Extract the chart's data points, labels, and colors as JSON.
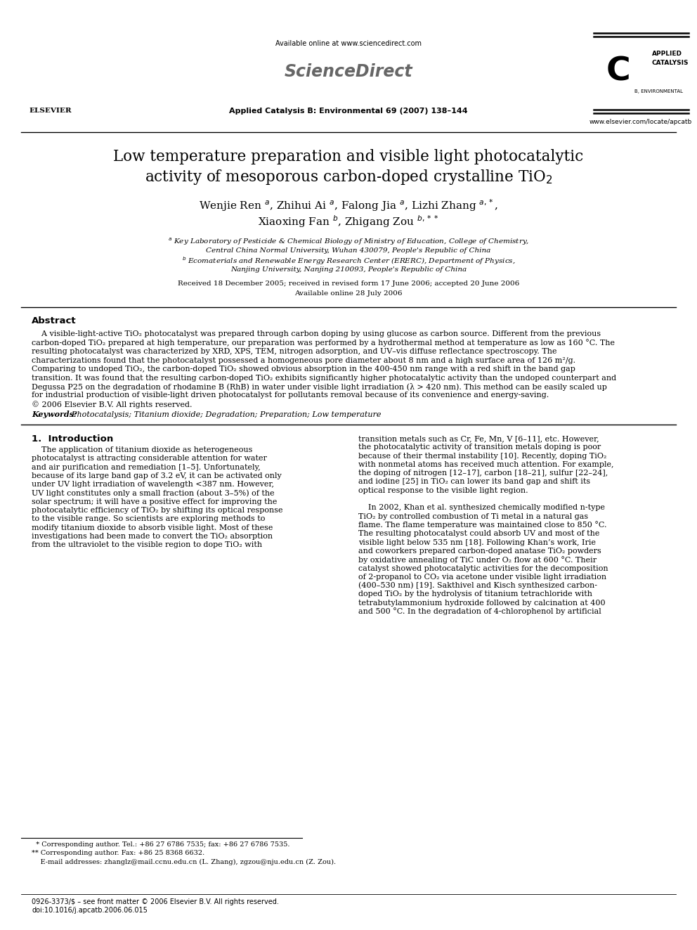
{
  "page_width": 9.92,
  "page_height": 13.23,
  "background_color": "#ffffff",
  "header_available": "Available online at www.sciencedirect.com",
  "header_journal": "Applied Catalysis B: Environmental 69 (2007) 138–144",
  "header_sciencedirect": "ScienceDirect",
  "header_website": "www.elsevier.com/locate/apcatb",
  "title_line1": "Low temperature preparation and visible light photocatalytic",
  "title_line2": "activity of mesoporous carbon-doped crystalline TiO$_2$",
  "authors_line1": "Wenjie Ren $^{a}$, Zhihui Ai $^{a}$, Falong Jia $^{a}$, Lizhi Zhang $^{a,*}$,",
  "authors_line2": "Xiaoxing Fan $^{b}$, Zhigang Zou $^{b,**}$",
  "affil_a1": "$^{a}$ Key Laboratory of Pesticide & Chemical Biology of Ministry of Education, College of Chemistry,",
  "affil_a2": "Central China Normal University, Wuhan 430079, People's Republic of China",
  "affil_b1": "$^{b}$ Ecomaterials and Renewable Energy Research Center (ERERC), Department of Physics,",
  "affil_b2": "Nanjing University, Nanjing 210093, People's Republic of China",
  "received": "Received 18 December 2005; received in revised form 17 June 2006; accepted 20 June 2006",
  "available_online": "Available online 28 July 2006",
  "abstract_title": "Abstract",
  "abstract_lines": [
    "    A visible-light-active TiO₂ photocatalyst was prepared through carbon doping by using glucose as carbon source. Different from the previous",
    "carbon-doped TiO₂ prepared at high temperature, our preparation was performed by a hydrothermal method at temperature as low as 160 °C. The",
    "resulting photocatalyst was characterized by XRD, XPS, TEM, nitrogen adsorption, and UV–vis diffuse reflectance spectroscopy. The",
    "characterizations found that the photocatalyst possessed a homogeneous pore diameter about 8 nm and a high surface area of 126 m²/g.",
    "Comparing to undoped TiO₂, the carbon-doped TiO₂ showed obvious absorption in the 400-450 nm range with a red shift in the band gap",
    "transition. It was found that the resulting carbon-doped TiO₂ exhibits significantly higher photocatalytic activity than the undoped counterpart and",
    "Degussa P25 on the degradation of rhodamine B (RhB) in water under visible light irradiation (λ > 420 nm). This method can be easily scaled up",
    "for industrial production of visible-light driven photocatalyst for pollutants removal because of its convenience and energy-saving."
  ],
  "copyright": "© 2006 Elsevier B.V. All rights reserved.",
  "keywords_label": "Keywords:",
  "keywords_text": "  Photocatalysis; Titanium dioxide; Degradation; Preparation; Low temperature",
  "section1_title": "1.  Introduction",
  "col1_lines": [
    "    The application of titanium dioxide as heterogeneous",
    "photocatalyst is attracting considerable attention for water",
    "and air purification and remediation [1–5]. Unfortunately,",
    "because of its large band gap of 3.2 eV, it can be activated only",
    "under UV light irradiation of wavelength <387 nm. However,",
    "UV light constitutes only a small fraction (about 3–5%) of the",
    "solar spectrum; it will have a positive effect for improving the",
    "photocatalytic efficiency of TiO₂ by shifting its optical response",
    "to the visible range. So scientists are exploring methods to",
    "modify titanium dioxide to absorb visible light. Most of these",
    "investigations had been made to convert the TiO₂ absorption",
    "from the ultraviolet to the visible region to dope TiO₂ with"
  ],
  "col2_lines_p1": [
    "transition metals such as Cr, Fe, Mn, V [6–11], etc. However,",
    "the photocatalytic activity of transition metals doping is poor",
    "because of their thermal instability [10]. Recently, doping TiO₂",
    "with nonmetal atoms has received much attention. For example,",
    "the doping of nitrogen [12–17], carbon [18–21], sulfur [22–24],",
    "and iodine [25] in TiO₂ can lower its band gap and shift its",
    "optical response to the visible light region."
  ],
  "col2_lines_p2": [
    "    In 2002, Khan et al. synthesized chemically modified n-type",
    "TiO₂ by controlled combustion of Ti metal in a natural gas",
    "flame. The flame temperature was maintained close to 850 °C.",
    "The resulting photocatalyst could absorb UV and most of the",
    "visible light below 535 nm [18]. Following Khan’s work, Irie",
    "and coworkers prepared carbon-doped anatase TiO₂ powders",
    "by oxidative annealing of TiC under O₂ flow at 600 °C. Their",
    "catalyst showed photocatalytic activities for the decomposition",
    "of 2-propanol to CO₂ via acetone under visible light irradiation",
    "(400–530 nm) [19]. Sakthivel and Kisch synthesized carbon-",
    "doped TiO₂ by the hydrolysis of titanium tetrachloride with",
    "tetrabutylammonium hydroxide followed by calcination at 400",
    "and 500 °C. In the degradation of 4-chlorophenol by artificial"
  ],
  "footnote1": "  * Corresponding author. Tel.: +86 27 6786 7535; fax: +86 27 6786 7535.",
  "footnote2": "** Corresponding author. Fax: +86 25 8368 6632.",
  "footnote3": "    E-mail addresses: zhanglz@mail.ccnu.edu.cn (L. Zhang), zgzou@nju.edu.cn (Z. Zou).",
  "bottom1": "0926-3373/$ – see front matter © 2006 Elsevier B.V. All rights reserved.",
  "bottom2": "doi:10.1016/j.apcatb.2006.06.015"
}
